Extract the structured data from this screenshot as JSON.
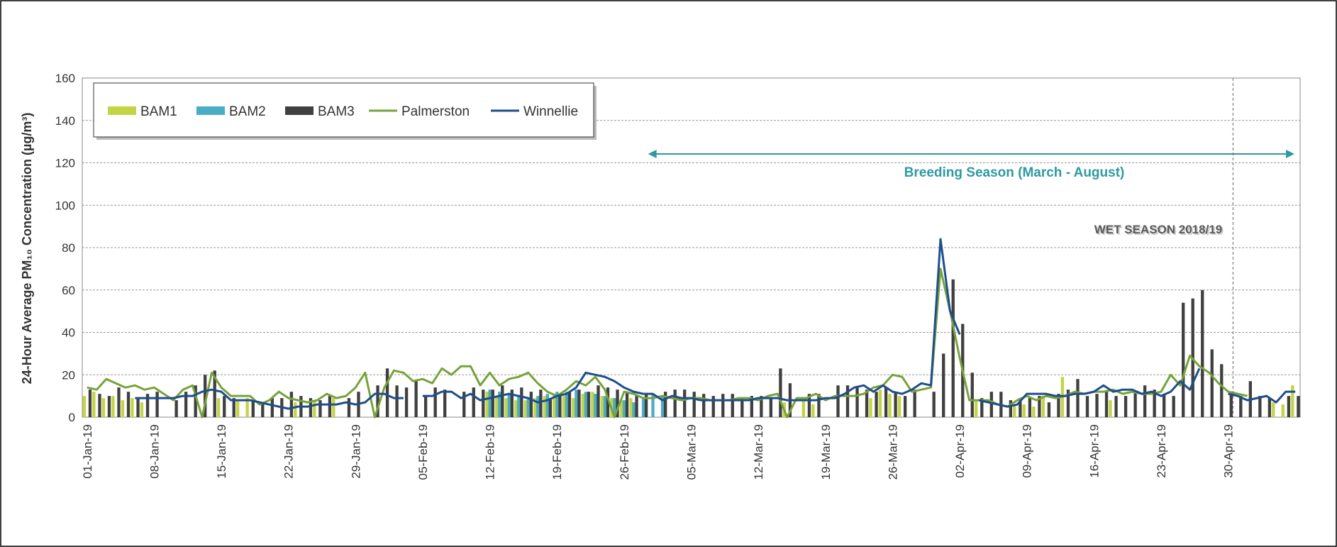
{
  "chart_data": {
    "type": "bar",
    "y_label": "24-Hour Average PM₁₀ Concentration (µg/m³)",
    "annotations": [
      "Breeding Season (March - August)",
      "WET SEASON 2018/19"
    ],
    "categories": [
      "01-Jan-19",
      null,
      null,
      null,
      null,
      null,
      null,
      "08-Jan-19",
      null,
      null,
      null,
      null,
      null,
      null,
      "15-Jan-19",
      null,
      null,
      null,
      null,
      null,
      null,
      "22-Jan-19",
      null,
      null,
      null,
      null,
      null,
      null,
      "29-Jan-19",
      null,
      null,
      null,
      null,
      null,
      null,
      "05-Feb-19",
      null,
      null,
      null,
      null,
      null,
      null,
      "12-Feb-19",
      null,
      null,
      null,
      null,
      null,
      null,
      "19-Feb-19",
      null,
      null,
      null,
      null,
      null,
      null,
      "26-Feb-19",
      null,
      null,
      null,
      null,
      null,
      null,
      "05-Mar-19",
      null,
      null,
      null,
      null,
      null,
      null,
      "12-Mar-19",
      null,
      null,
      null,
      null,
      null,
      null,
      "19-Mar-19",
      null,
      null,
      null,
      null,
      null,
      null,
      "26-Mar-19",
      null,
      null,
      null,
      null,
      null,
      null,
      "02-Apr-19",
      null,
      null,
      null,
      null,
      null,
      null,
      "09-Apr-19",
      null,
      null,
      null,
      null,
      null,
      null,
      "16-Apr-19",
      null,
      null,
      null,
      null,
      null,
      null,
      "23-Apr-19",
      null,
      null,
      null,
      null,
      null,
      null,
      "30-Apr-19",
      null,
      null,
      null,
      null,
      null,
      null,
      null
    ],
    "ylim": [
      0,
      160
    ],
    "yticks": [
      0,
      20,
      40,
      60,
      80,
      100,
      120,
      140,
      160
    ],
    "grid": true,
    "series": [
      {
        "name": "BAM1",
        "type": "bar",
        "color": "#c3d444",
        "values": [
          10,
          12,
          9,
          10,
          8,
          9,
          7,
          null,
          null,
          null,
          null,
          null,
          null,
          null,
          9,
          null,
          8,
          9,
          null,
          null,
          null,
          null,
          7,
          null,
          8,
          null,
          9,
          null,
          null,
          null,
          null,
          null,
          null,
          null,
          null,
          null,
          null,
          null,
          null,
          null,
          null,
          null,
          12,
          10,
          9,
          8,
          8,
          9,
          10,
          11,
          10,
          9,
          11,
          12,
          10,
          9,
          8,
          9,
          null,
          null,
          null,
          null,
          null,
          null,
          null,
          null,
          null,
          null,
          null,
          null,
          null,
          null,
          null,
          7,
          null,
          8,
          6,
          null,
          null,
          null,
          null,
          null,
          9,
          13,
          11,
          10,
          null,
          null,
          null,
          null,
          null,
          null,
          null,
          8,
          null,
          null,
          null,
          6,
          6,
          5,
          10,
          null,
          19,
          null,
          null,
          null,
          null,
          8,
          null,
          null,
          null,
          null,
          null,
          null,
          null,
          null,
          null,
          null,
          null,
          null,
          null,
          null,
          null,
          null,
          7,
          6,
          15
        ]
      },
      {
        "name": "BAM2",
        "type": "bar",
        "color": "#4bacc6",
        "values": [
          null,
          null,
          null,
          null,
          null,
          null,
          null,
          null,
          null,
          null,
          null,
          null,
          null,
          null,
          null,
          null,
          null,
          null,
          null,
          null,
          null,
          null,
          null,
          null,
          null,
          null,
          null,
          null,
          null,
          null,
          null,
          null,
          null,
          null,
          null,
          null,
          null,
          null,
          null,
          null,
          null,
          null,
          13,
          12,
          11,
          10,
          9,
          10,
          11,
          12,
          12,
          13,
          12,
          11,
          10,
          9,
          8,
          7,
          9,
          11,
          10,
          null,
          null,
          null,
          null,
          null,
          null,
          null,
          null,
          null,
          null,
          null,
          null,
          null,
          null,
          null,
          null,
          null,
          null,
          null,
          null,
          null,
          null,
          null,
          null,
          null,
          null,
          null,
          null,
          null,
          null,
          null,
          null,
          null,
          null,
          null,
          null,
          null,
          null,
          null,
          null,
          null,
          null,
          null,
          null,
          null,
          null,
          null,
          null,
          null,
          null,
          null,
          null,
          null,
          null,
          null,
          null,
          null,
          null,
          null,
          null,
          null,
          null,
          null,
          null,
          null,
          null
        ]
      },
      {
        "name": "BAM3",
        "type": "bar",
        "color": "#404040",
        "values": [
          13,
          11,
          10,
          14,
          12,
          9,
          11,
          12,
          null,
          8,
          12,
          15,
          20,
          22,
          10,
          9,
          null,
          8,
          7,
          9,
          9,
          12,
          10,
          9,
          8,
          10,
          null,
          9,
          12,
          null,
          15,
          23,
          15,
          14,
          17,
          10,
          14,
          13,
          null,
          12,
          14,
          13,
          13,
          15,
          13,
          14,
          12,
          13,
          9,
          11,
          12,
          13,
          12,
          15,
          14,
          13,
          12,
          10,
          11,
          null,
          12,
          13,
          13,
          12,
          11,
          10,
          11,
          11,
          9,
          10,
          10,
          9,
          23,
          16,
          null,
          11,
          11,
          null,
          15,
          15,
          14,
          13,
          12,
          14,
          12,
          10,
          13,
          null,
          12,
          30,
          65,
          44,
          21,
          9,
          12,
          12,
          8,
          9,
          9,
          10,
          7,
          11,
          13,
          18,
          10,
          11,
          12,
          10,
          10,
          12,
          15,
          13,
          11,
          10,
          54,
          56,
          60,
          32,
          25,
          12,
          10,
          17,
          10,
          9,
          null,
          10,
          10
        ]
      },
      {
        "name": "Palmerston",
        "type": "line",
        "color": "#77a33a",
        "values": [
          14,
          13,
          18,
          16,
          14,
          15,
          13,
          14,
          11,
          8,
          13,
          15,
          0,
          21,
          14,
          10,
          10,
          10,
          6,
          8,
          12,
          9,
          8,
          7,
          8,
          11,
          9,
          10,
          14,
          21,
          0,
          14,
          22,
          21,
          17,
          18,
          16,
          23,
          20,
          24,
          24,
          15,
          21,
          15,
          18,
          19,
          21,
          16,
          12,
          10,
          13,
          17,
          15,
          19,
          13,
          0,
          12,
          11,
          9,
          9,
          10,
          9,
          8,
          9,
          9,
          8,
          8,
          8,
          9,
          9,
          8,
          10,
          11,
          0,
          9,
          9,
          11,
          8,
          10,
          10,
          10,
          11,
          14,
          15,
          20,
          19,
          12,
          13,
          14,
          70,
          50,
          28,
          8,
          8,
          8,
          6,
          5,
          8,
          10,
          8,
          10,
          9,
          10,
          12,
          11,
          12,
          12,
          13,
          11,
          12,
          11,
          11,
          12,
          20,
          15,
          29,
          24,
          21,
          16,
          12,
          11,
          10,
          null,
          null,
          null,
          null,
          null
        ]
      },
      {
        "name": "Winnellie",
        "type": "line",
        "color": "#1f4e8c",
        "values": [
          null,
          null,
          null,
          null,
          null,
          9,
          9,
          9,
          9,
          9,
          10,
          10,
          12,
          13,
          12,
          8,
          8,
          8,
          7,
          6,
          5,
          4,
          5,
          5,
          6,
          6,
          6,
          7,
          6,
          7,
          11,
          11,
          9,
          9,
          null,
          10,
          10,
          12,
          12,
          9,
          11,
          8,
          9,
          10,
          11,
          10,
          9,
          7,
          8,
          10,
          11,
          14,
          21,
          20,
          19,
          17,
          14,
          12,
          11,
          11,
          8,
          10,
          9,
          9,
          8,
          8,
          8,
          8,
          8,
          8,
          9,
          9,
          9,
          8,
          8,
          8,
          8,
          9,
          9,
          11,
          14,
          15,
          12,
          15,
          12,
          11,
          13,
          16,
          15,
          84,
          50,
          39,
          null,
          8,
          7,
          6,
          5,
          6,
          11,
          11,
          11,
          10,
          10,
          11,
          11,
          12,
          15,
          12,
          13,
          13,
          11,
          12,
          10,
          12,
          17,
          13,
          23,
          null,
          null,
          11,
          10,
          8,
          9,
          10,
          7,
          12,
          12
        ]
      }
    ]
  }
}
